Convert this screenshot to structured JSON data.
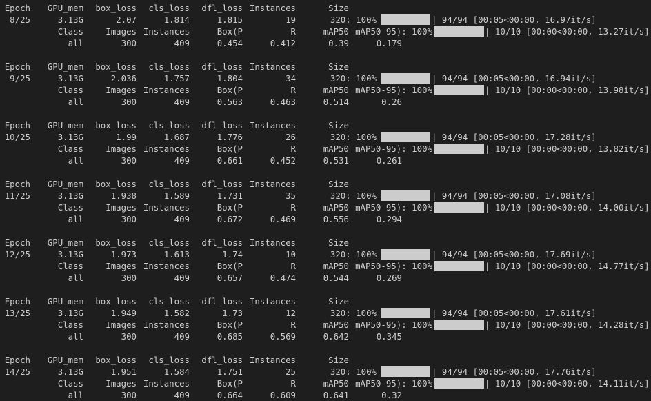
{
  "theme": {
    "background": "#1e1e1e",
    "foreground": "#cccccc",
    "bar_fill": "#cccccc"
  },
  "epochs": [
    {
      "header": [
        "Epoch",
        "GPU_mem",
        "box_loss",
        "cls_loss",
        "dfl_loss",
        "Instances",
        "Size"
      ],
      "train": {
        "epoch": "8/25",
        "gpu": "3.13G",
        "box": "2.07",
        "cls": "1.814",
        "dfl": "1.815",
        "inst": "19",
        "size": "320: 100%",
        "progress_fraction": 1.0,
        "rest": "| 94/94 [00:05<00:00, 16.97it/s]"
      },
      "val_header": {
        "class": "Class",
        "images": "Images",
        "instances": "Instances",
        "box": "Box(P",
        "r": "R",
        "map50": "mAP50",
        "pct": "mAP50-95): 100%",
        "progress_fraction": 1.0,
        "rest": "| 10/10 [00:00<00:00, 13.27it/s]"
      },
      "val_row": {
        "cls": "all",
        "images": "300",
        "instances": "409",
        "p": "0.454",
        "r": "0.412",
        "map50": "0.39",
        "map5095": "0.179"
      }
    },
    {
      "header": [
        "Epoch",
        "GPU_mem",
        "box_loss",
        "cls_loss",
        "dfl_loss",
        "Instances",
        "Size"
      ],
      "train": {
        "epoch": "9/25",
        "gpu": "3.13G",
        "box": "2.036",
        "cls": "1.757",
        "dfl": "1.804",
        "inst": "34",
        "size": "320: 100%",
        "progress_fraction": 1.0,
        "rest": "| 94/94 [00:05<00:00, 16.94it/s]"
      },
      "val_header": {
        "class": "Class",
        "images": "Images",
        "instances": "Instances",
        "box": "Box(P",
        "r": "R",
        "map50": "mAP50",
        "pct": "mAP50-95): 100%",
        "progress_fraction": 1.0,
        "rest": "| 10/10 [00:00<00:00, 13.98it/s]"
      },
      "val_row": {
        "cls": "all",
        "images": "300",
        "instances": "409",
        "p": "0.563",
        "r": "0.463",
        "map50": "0.514",
        "map5095": "0.26"
      }
    },
    {
      "header": [
        "Epoch",
        "GPU_mem",
        "box_loss",
        "cls_loss",
        "dfl_loss",
        "Instances",
        "Size"
      ],
      "train": {
        "epoch": "10/25",
        "gpu": "3.13G",
        "box": "1.99",
        "cls": "1.687",
        "dfl": "1.776",
        "inst": "26",
        "size": "320: 100%",
        "progress_fraction": 1.0,
        "rest": "| 94/94 [00:05<00:00, 17.28it/s]"
      },
      "val_header": {
        "class": "Class",
        "images": "Images",
        "instances": "Instances",
        "box": "Box(P",
        "r": "R",
        "map50": "mAP50",
        "pct": "mAP50-95): 100%",
        "progress_fraction": 1.0,
        "rest": "| 10/10 [00:00<00:00, 13.82it/s]"
      },
      "val_row": {
        "cls": "all",
        "images": "300",
        "instances": "409",
        "p": "0.661",
        "r": "0.452",
        "map50": "0.531",
        "map5095": "0.261"
      }
    },
    {
      "header": [
        "Epoch",
        "GPU_mem",
        "box_loss",
        "cls_loss",
        "dfl_loss",
        "Instances",
        "Size"
      ],
      "train": {
        "epoch": "11/25",
        "gpu": "3.13G",
        "box": "1.938",
        "cls": "1.589",
        "dfl": "1.731",
        "inst": "35",
        "size": "320: 100%",
        "progress_fraction": 1.0,
        "rest": "| 94/94 [00:05<00:00, 17.08it/s]"
      },
      "val_header": {
        "class": "Class",
        "images": "Images",
        "instances": "Instances",
        "box": "Box(P",
        "r": "R",
        "map50": "mAP50",
        "pct": "mAP50-95): 100%",
        "progress_fraction": 1.0,
        "rest": "| 10/10 [00:00<00:00, 14.00it/s]"
      },
      "val_row": {
        "cls": "all",
        "images": "300",
        "instances": "409",
        "p": "0.672",
        "r": "0.469",
        "map50": "0.556",
        "map5095": "0.294"
      }
    },
    {
      "header": [
        "Epoch",
        "GPU_mem",
        "box_loss",
        "cls_loss",
        "dfl_loss",
        "Instances",
        "Size"
      ],
      "train": {
        "epoch": "12/25",
        "gpu": "3.13G",
        "box": "1.973",
        "cls": "1.613",
        "dfl": "1.74",
        "inst": "10",
        "size": "320: 100%",
        "progress_fraction": 1.0,
        "rest": "| 94/94 [00:05<00:00, 17.69it/s]"
      },
      "val_header": {
        "class": "Class",
        "images": "Images",
        "instances": "Instances",
        "box": "Box(P",
        "r": "R",
        "map50": "mAP50",
        "pct": "mAP50-95): 100%",
        "progress_fraction": 1.0,
        "rest": "| 10/10 [00:00<00:00, 14.77it/s]"
      },
      "val_row": {
        "cls": "all",
        "images": "300",
        "instances": "409",
        "p": "0.657",
        "r": "0.474",
        "map50": "0.544",
        "map5095": "0.269"
      }
    },
    {
      "header": [
        "Epoch",
        "GPU_mem",
        "box_loss",
        "cls_loss",
        "dfl_loss",
        "Instances",
        "Size"
      ],
      "train": {
        "epoch": "13/25",
        "gpu": "3.13G",
        "box": "1.949",
        "cls": "1.582",
        "dfl": "1.73",
        "inst": "12",
        "size": "320: 100%",
        "progress_fraction": 1.0,
        "rest": "| 94/94 [00:05<00:00, 17.61it/s]"
      },
      "val_header": {
        "class": "Class",
        "images": "Images",
        "instances": "Instances",
        "box": "Box(P",
        "r": "R",
        "map50": "mAP50",
        "pct": "mAP50-95): 100%",
        "progress_fraction": 1.0,
        "rest": "| 10/10 [00:00<00:00, 14.28it/s]"
      },
      "val_row": {
        "cls": "all",
        "images": "300",
        "instances": "409",
        "p": "0.685",
        "r": "0.569",
        "map50": "0.642",
        "map5095": "0.345"
      }
    },
    {
      "header": [
        "Epoch",
        "GPU_mem",
        "box_loss",
        "cls_loss",
        "dfl_loss",
        "Instances",
        "Size"
      ],
      "train": {
        "epoch": "14/25",
        "gpu": "3.13G",
        "box": "1.951",
        "cls": "1.584",
        "dfl": "1.751",
        "inst": "25",
        "size": "320: 100%",
        "progress_fraction": 1.0,
        "rest": "| 94/94 [00:05<00:00, 17.76it/s]"
      },
      "val_header": {
        "class": "Class",
        "images": "Images",
        "instances": "Instances",
        "box": "Box(P",
        "r": "R",
        "map50": "mAP50",
        "pct": "mAP50-95): 100%",
        "progress_fraction": 1.0,
        "rest": "| 10/10 [00:00<00:00, 14.11it/s]"
      },
      "val_row": {
        "cls": "all",
        "images": "300",
        "instances": "409",
        "p": "0.664",
        "r": "0.609",
        "map50": "0.641",
        "map5095": "0.32"
      }
    }
  ]
}
